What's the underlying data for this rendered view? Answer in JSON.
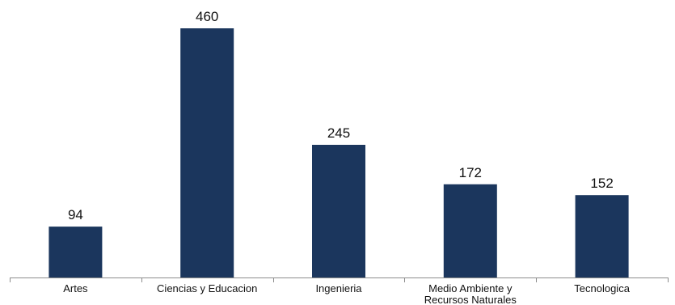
{
  "chart_data": {
    "type": "bar",
    "categories": [
      "Artes",
      "Ciencias y Educacion",
      "Ingenieria",
      "Medio Ambiente y Recursos Naturales",
      "Tecnologica"
    ],
    "category_label_lines": [
      [
        "Artes"
      ],
      [
        "Ciencias y Educacion"
      ],
      [
        "Ingenieria"
      ],
      [
        "Medio Ambiente y",
        "Recursos Naturales"
      ],
      [
        "Tecnologica"
      ]
    ],
    "values": [
      94,
      460,
      245,
      172,
      152
    ],
    "title": "",
    "xlabel": "",
    "ylabel": "",
    "ylim": [
      0,
      460
    ],
    "grid": false,
    "legend": "none",
    "bar_color": "#1b365d",
    "data_labels": true
  }
}
